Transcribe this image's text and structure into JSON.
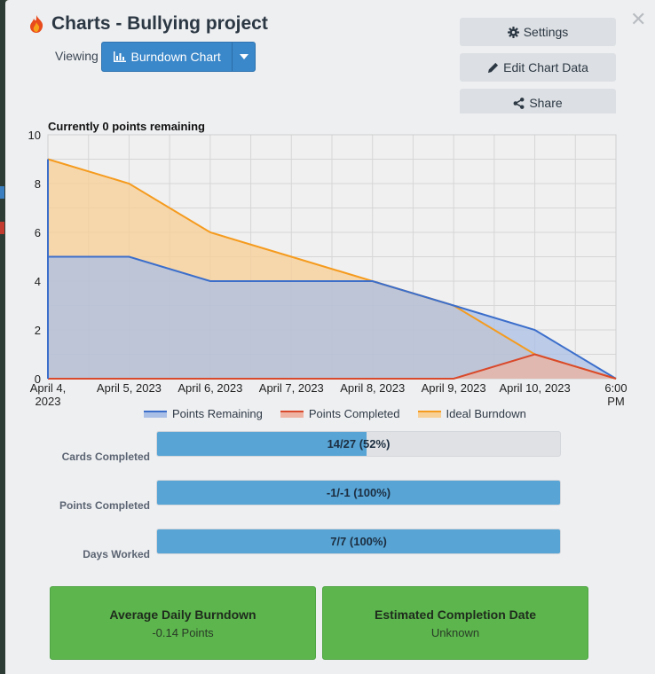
{
  "header": {
    "title": "Charts - Bullying project",
    "viewing_label": "Viewing",
    "view_selected": "Burndown Chart"
  },
  "actions": {
    "settings": "Settings",
    "edit": "Edit Chart Data",
    "share": "Share"
  },
  "chart_data": {
    "type": "area",
    "title": "Currently 0 points remaining",
    "x": [
      "April 4, 2023",
      "April 5, 2023",
      "April 6, 2023",
      "April 7, 2023",
      "April 8, 2023",
      "April 9, 2023",
      "April 10, 2023",
      "6:00 PM"
    ],
    "ylim": [
      0,
      10
    ],
    "yticks": [
      0,
      2,
      4,
      6,
      8,
      10
    ],
    "grid": true,
    "legend_position": "bottom",
    "series": [
      {
        "name": "Points Remaining",
        "color": "#3b6ecb",
        "fill": "#aabfe6",
        "values": [
          5,
          5,
          4,
          4,
          4,
          3,
          2,
          0
        ]
      },
      {
        "name": "Points Completed",
        "color": "#d9492b",
        "fill": "#eeb3a3",
        "values": [
          0,
          0,
          0,
          0,
          0,
          0,
          1,
          0
        ]
      },
      {
        "name": "Ideal Burndown",
        "color": "#f59b1e",
        "fill": "#f8cf95",
        "values": [
          9,
          8,
          6,
          5,
          4,
          3,
          1,
          0
        ]
      }
    ],
    "x_tick_labels": [
      {
        "lines": [
          "April 4,",
          "2023"
        ]
      },
      {
        "lines": [
          "April 5, 2023"
        ]
      },
      {
        "lines": [
          "April 6, 2023"
        ]
      },
      {
        "lines": [
          "April 7, 2023"
        ]
      },
      {
        "lines": [
          "April 8, 2023"
        ]
      },
      {
        "lines": [
          "April 9, 2023"
        ]
      },
      {
        "lines": [
          "April 10, 2023"
        ]
      },
      {
        "lines": [
          "6:00",
          "PM"
        ]
      }
    ]
  },
  "stats": [
    {
      "label": "Cards Completed",
      "text": "14/27 (52%)",
      "fraction": 0.52
    },
    {
      "label": "Points Completed",
      "text": "-1/-1 (100%)",
      "fraction": 1.0
    },
    {
      "label": "Days Worked",
      "text": "7/7 (100%)",
      "fraction": 1.0
    }
  ],
  "summary": {
    "avg_title": "Average Daily Burndown",
    "avg_value": "-0.14 Points",
    "eta_title": "Estimated Completion Date",
    "eta_value": "Unknown"
  },
  "icons": {
    "logo": "flame-icon",
    "close": "close-icon",
    "settings": "gear-icon",
    "edit": "pencil-icon",
    "share": "share-icon",
    "chart": "bar-chart-icon",
    "caret": "caret-down-icon"
  }
}
